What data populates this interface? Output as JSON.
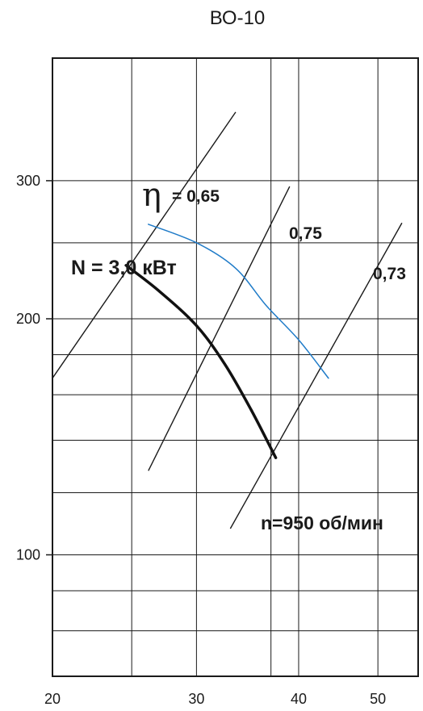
{
  "chart_data": {
    "type": "line",
    "title": "ВО-10",
    "xlabel": "",
    "ylabel": "",
    "xscale": "log",
    "yscale": "log",
    "xlim": [
      20,
      56
    ],
    "ylim": [
      70,
      430
    ],
    "grid": true,
    "x_gridlines": [
      25,
      30,
      37,
      40,
      50
    ],
    "y_gridlines": [
      80,
      90,
      100,
      120,
      140,
      160,
      180,
      200,
      250,
      300
    ],
    "x_tick_labels": [
      "20",
      "30",
      "40",
      "50"
    ],
    "y_tick_labels": [
      "100",
      "200",
      "300"
    ],
    "series": [
      {
        "name": "N = 3,0 кВт",
        "color": "#1f7bc8",
        "x": [
          26.2,
          30.0,
          33.5,
          36.5,
          40.0,
          43.5
        ],
        "y": [
          264,
          250,
          232,
          208,
          188,
          168
        ]
      },
      {
        "name": "n=950 об/мин",
        "color": "#111111",
        "x": [
          24.6,
          27.0,
          30.0,
          32.5,
          35.0,
          37.5
        ],
        "y": [
          234,
          217,
          196,
          175,
          153,
          133
        ]
      }
    ],
    "efficiency_lines": [
      {
        "label": "0,65",
        "x": [
          20,
          33.5
        ],
        "y": [
          168,
          367
        ]
      },
      {
        "label": "0,75",
        "x": [
          26.2,
          39.0
        ],
        "y": [
          128,
          295
        ]
      },
      {
        "label": "0,73",
        "x": [
          33.0,
          53.5
        ],
        "y": [
          108,
          265
        ]
      }
    ],
    "annotations": {
      "eta_symbol": "η",
      "eta_065": "= 0,65",
      "eta_075": "0,75",
      "eta_073": "0,73",
      "power": "N = 3,0 кВт",
      "speed": "n=950 об/мин"
    }
  }
}
